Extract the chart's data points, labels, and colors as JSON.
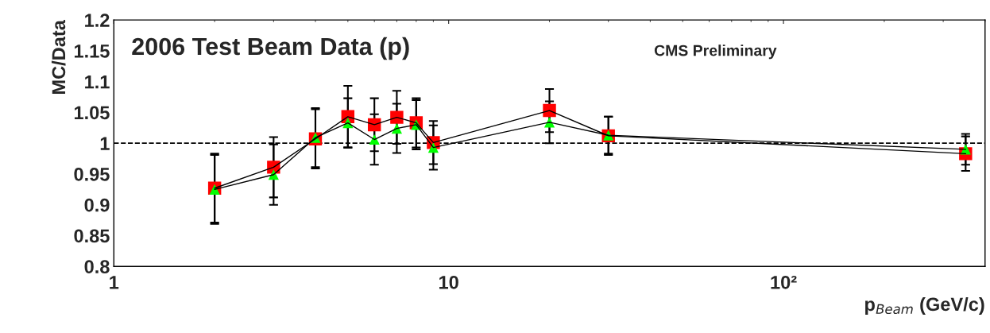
{
  "chart_data": {
    "type": "line",
    "title": "2006 Test Beam Data (p)",
    "xlabel": "p$_{Beam}$ (GeV/c)",
    "ylabel": "MC/Data",
    "annotations": [
      "CMS Preliminary"
    ],
    "x": [
      2,
      3,
      4,
      5,
      6,
      7,
      8,
      9,
      20,
      30,
      350
    ],
    "series": [
      {
        "color": "#ff0000",
        "marker": "square",
        "values": [
          0.927,
          0.961,
          1.007,
          1.043,
          1.03,
          1.042,
          1.033,
          1.001,
          1.053,
          1.012,
          0.983
        ],
        "errors": [
          0.056,
          0.049,
          0.048,
          0.05,
          0.043,
          0.043,
          0.04,
          0.035,
          0.035,
          0.031,
          0.028
        ]
      },
      {
        "color": "#00ff00",
        "marker": "triangle",
        "values": [
          0.925,
          0.949,
          1.009,
          1.033,
          1.006,
          1.024,
          1.03,
          0.993,
          1.034,
          1.013,
          0.99
        ],
        "errors": [
          0.056,
          0.049,
          0.048,
          0.04,
          0.041,
          0.04,
          0.04,
          0.036,
          0.034,
          0.03,
          0.025
        ]
      }
    ],
    "log": "x",
    "xlim": [
      1,
      400
    ],
    "xticks": [
      1,
      10,
      {
        "value": 100,
        "label": "10²"
      }
    ],
    "ylim": [
      0.8,
      1.2
    ],
    "yticks": [
      0.8,
      0.85,
      0.9,
      0.95,
      1,
      1.05,
      1.1,
      1.15,
      1.2
    ],
    "ref_lines": [
      {
        "axis": "y",
        "value": 1,
        "color": "#000000",
        "line_style": "dashed"
      }
    ],
    "grid": false,
    "legend": false,
    "line_style": "solid"
  }
}
